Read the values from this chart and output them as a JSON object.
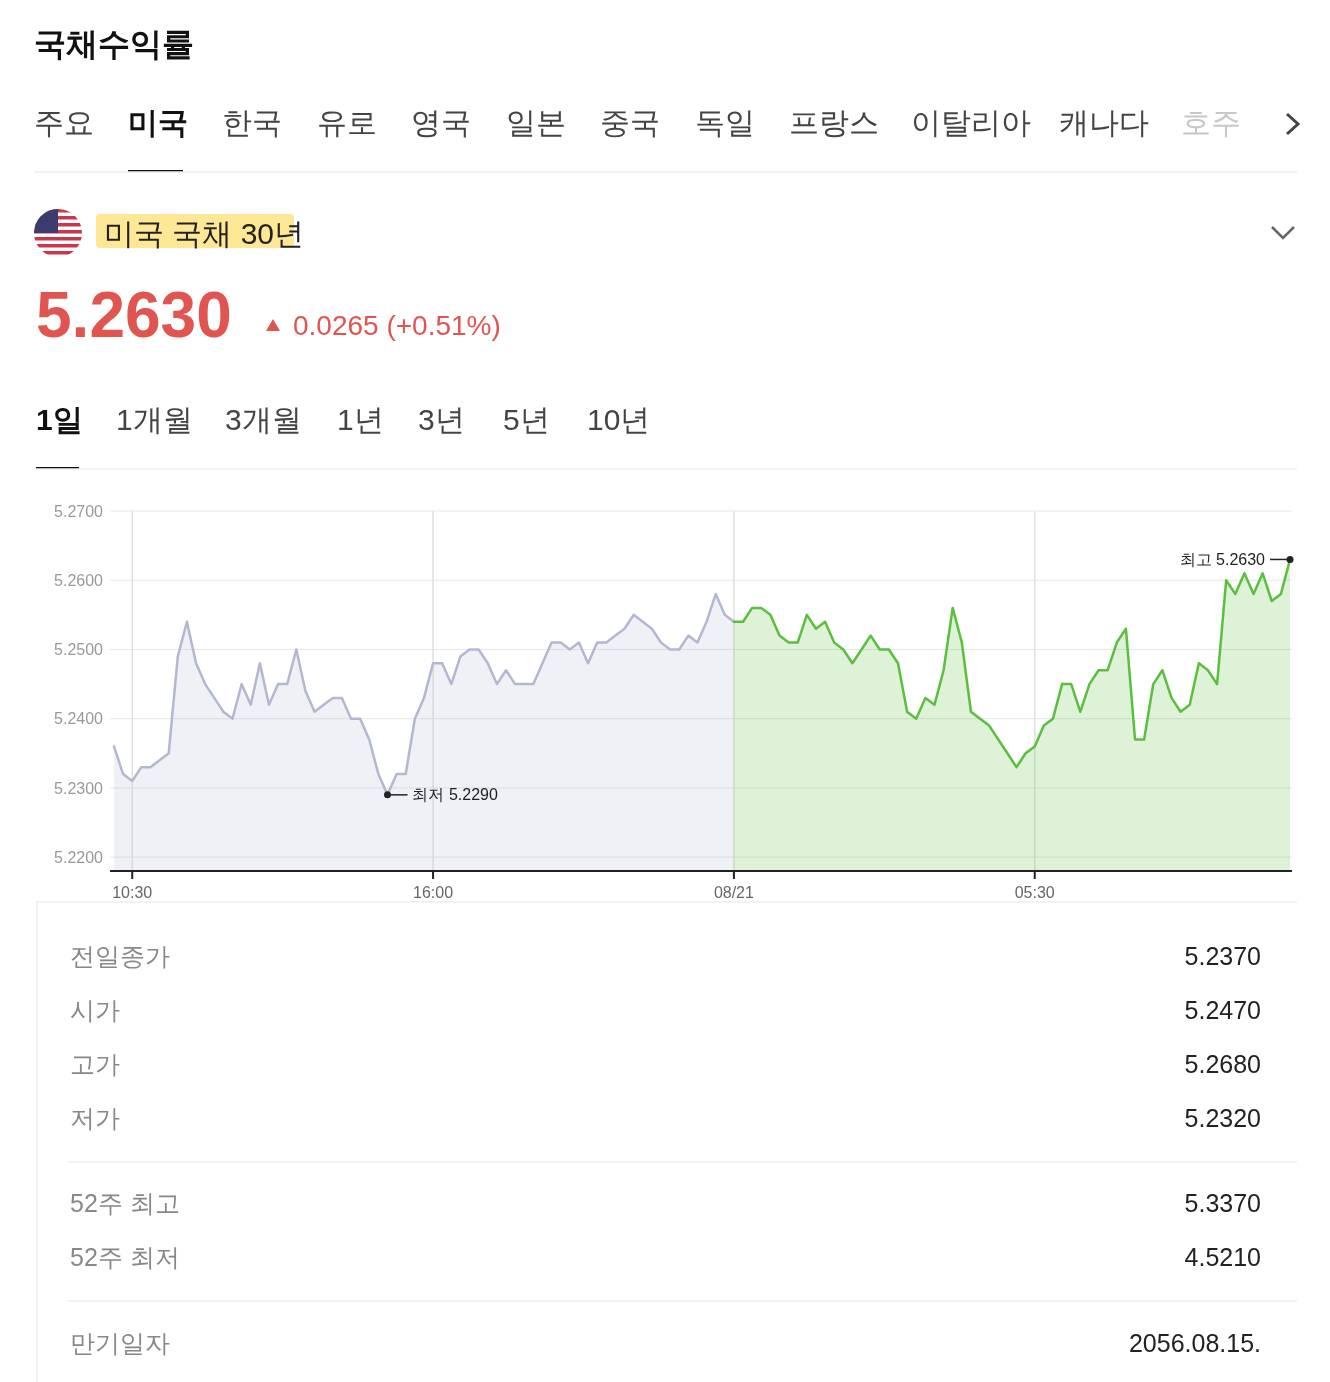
{
  "chart_data": {
    "type": "area",
    "title": "국채수익률",
    "subtitle": "미국 국채 30년",
    "categories": [
      null,
      null,
      "10:30",
      null,
      null,
      null,
      null,
      null,
      null,
      null,
      null,
      null,
      null,
      null,
      null,
      null,
      null,
      null,
      null,
      null,
      null,
      null,
      null,
      null,
      null,
      null,
      null,
      null,
      null,
      null,
      null,
      null,
      null,
      null,
      null,
      "16:00",
      null,
      null,
      null,
      null,
      null,
      null,
      null,
      null,
      null,
      null,
      null,
      null,
      null,
      null,
      null,
      null,
      null,
      null,
      null,
      null,
      null,
      null,
      null,
      null,
      null,
      null,
      null,
      null,
      null,
      null,
      null,
      null,
      "08/21",
      null,
      null,
      null,
      null,
      null,
      null,
      null,
      null,
      null,
      null,
      null,
      null,
      null,
      null,
      null,
      null,
      null,
      null,
      null,
      null,
      null,
      null,
      null,
      null,
      null,
      null,
      null,
      null,
      null,
      null,
      null,
      null,
      "05:30",
      null,
      null,
      null,
      null,
      null,
      null,
      null,
      null,
      null,
      null,
      null,
      null,
      null,
      null,
      null,
      null,
      null,
      null,
      null,
      null,
      null,
      null,
      null,
      null,
      null,
      null,
      null,
      null
    ],
    "ylim": [
      5.218,
      5.27
    ],
    "yticks": [
      {
        "value": 5.22,
        "label": "5.2200"
      },
      {
        "value": 5.23,
        "label": "5.2300"
      },
      {
        "value": 5.24,
        "label": "5.2400"
      },
      {
        "value": 5.25,
        "label": "5.2500"
      },
      {
        "value": 5.26,
        "label": "5.2600"
      },
      {
        "value": 5.27,
        "label": "5.2700"
      }
    ],
    "grid": true,
    "series": [
      {
        "color": "#b4b7d2",
        "values": [
          5.236,
          5.232,
          5.231,
          5.233,
          5.233,
          5.234,
          5.235,
          5.249,
          5.254,
          5.248,
          5.245,
          5.243,
          5.241,
          5.24,
          5.245,
          5.242,
          5.248,
          5.242,
          5.245,
          5.245,
          5.25,
          5.244,
          5.241,
          5.242,
          5.243,
          5.243,
          5.24,
          5.24,
          5.237,
          5.232,
          5.229,
          5.232,
          5.232,
          5.24,
          5.243,
          5.248,
          5.248,
          5.245,
          5.249,
          5.25,
          5.25,
          5.248,
          5.245,
          5.247,
          5.245,
          5.245,
          5.245,
          5.248,
          5.251,
          5.251,
          5.25,
          5.251,
          5.248,
          5.251,
          5.251,
          5.252,
          5.253,
          5.255,
          5.254,
          5.253,
          5.251,
          5.25,
          5.25,
          5.252,
          5.251,
          5.254,
          5.258,
          5.255,
          5.254,
          null,
          null,
          null,
          null,
          null,
          null,
          null,
          null,
          null,
          null,
          null,
          null,
          null,
          null,
          null,
          null,
          null,
          null,
          null,
          null,
          null,
          null,
          null,
          null,
          null,
          null,
          null,
          null,
          null,
          null,
          null,
          null,
          null,
          null,
          null,
          null,
          null,
          null,
          null,
          null,
          null,
          null,
          null,
          null,
          null,
          null,
          null,
          null,
          null,
          null,
          null,
          null,
          null,
          null,
          null,
          null,
          null,
          null,
          null,
          null,
          null
        ]
      },
      {
        "color": "#5abf3e",
        "values": [
          null,
          null,
          null,
          null,
          null,
          null,
          null,
          null,
          null,
          null,
          null,
          null,
          null,
          null,
          null,
          null,
          null,
          null,
          null,
          null,
          null,
          null,
          null,
          null,
          null,
          null,
          null,
          null,
          null,
          null,
          null,
          null,
          null,
          null,
          null,
          null,
          null,
          null,
          null,
          null,
          null,
          null,
          null,
          null,
          null,
          null,
          null,
          null,
          null,
          null,
          null,
          null,
          null,
          null,
          null,
          null,
          null,
          null,
          null,
          null,
          null,
          null,
          null,
          null,
          null,
          null,
          null,
          null,
          5.254,
          5.254,
          5.256,
          5.256,
          5.255,
          5.252,
          5.251,
          5.251,
          5.255,
          5.253,
          5.254,
          5.251,
          5.25,
          5.248,
          5.25,
          5.252,
          5.25,
          5.25,
          5.248,
          5.241,
          5.24,
          5.243,
          5.242,
          5.247,
          5.256,
          5.251,
          5.241,
          5.24,
          5.239,
          5.237,
          5.235,
          5.233,
          5.235,
          5.236,
          5.239,
          5.24,
          5.245,
          5.245,
          5.241,
          5.245,
          5.247,
          5.247,
          5.251,
          5.253,
          5.237,
          5.237,
          5.245,
          5.247,
          5.243,
          5.241,
          5.242,
          5.248,
          5.247,
          5.245,
          5.26,
          5.258,
          5.261,
          5.258,
          5.261,
          5.257,
          5.258,
          5.263
        ]
      }
    ],
    "annotations": [
      "주요",
      "미국",
      "한국",
      "유로",
      "영국",
      "일본",
      "중국",
      "독일",
      "프랑스",
      "이탈리아",
      "캐나다",
      "호주",
      "5.2630",
      "0.0265 (+0.51%)",
      "1일",
      "1개월",
      "3개월",
      "1년",
      "3년",
      "5년",
      "10년",
      "전일종가",
      "5.2370",
      "시가",
      "5.2470",
      "고가",
      "5.2680",
      "저가",
      "5.2320",
      "52주 최고",
      "5.3370",
      "52주 최저",
      "4.5210",
      "만기일자",
      "2056.08.15.",
      "최저 5.2290",
      "최고 5.2630"
    ]
  }
}
